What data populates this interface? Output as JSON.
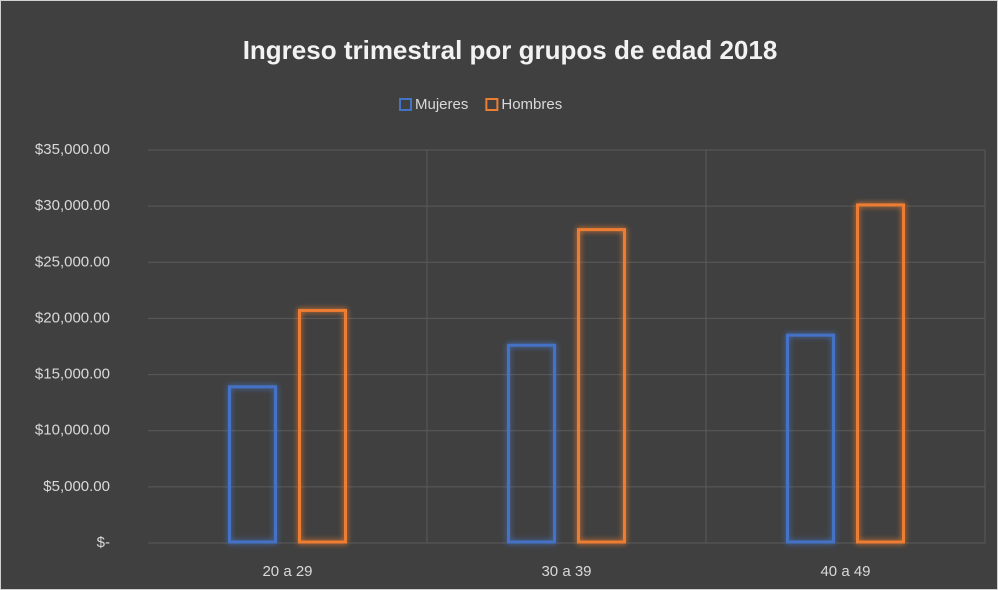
{
  "chart_data": {
    "type": "bar",
    "title": "Ingreso trimestral por  grupos de edad 2018",
    "categories": [
      "20 a 29",
      "30 a 39",
      "40 a 49"
    ],
    "series": [
      {
        "name": "Mujeres",
        "color": "#4472c4",
        "values": [
          14000,
          17700,
          18600
        ]
      },
      {
        "name": "Hombres",
        "color": "#ed7d31",
        "values": [
          20800,
          28000,
          30200
        ]
      }
    ],
    "ylim": [
      0,
      35000
    ],
    "yticks": [
      {
        "value": 0,
        "label": "$-"
      },
      {
        "value": 5000,
        "label": "$5,000.00"
      },
      {
        "value": 10000,
        "label": "$10,000.00"
      },
      {
        "value": 15000,
        "label": "$15,000.00"
      },
      {
        "value": 20000,
        "label": "$20,000.00"
      },
      {
        "value": 25000,
        "label": "$25,000.00"
      },
      {
        "value": 30000,
        "label": "$30,000.00"
      },
      {
        "value": 35000,
        "label": "$35,000.00"
      }
    ],
    "grid": true,
    "legend": "top"
  }
}
